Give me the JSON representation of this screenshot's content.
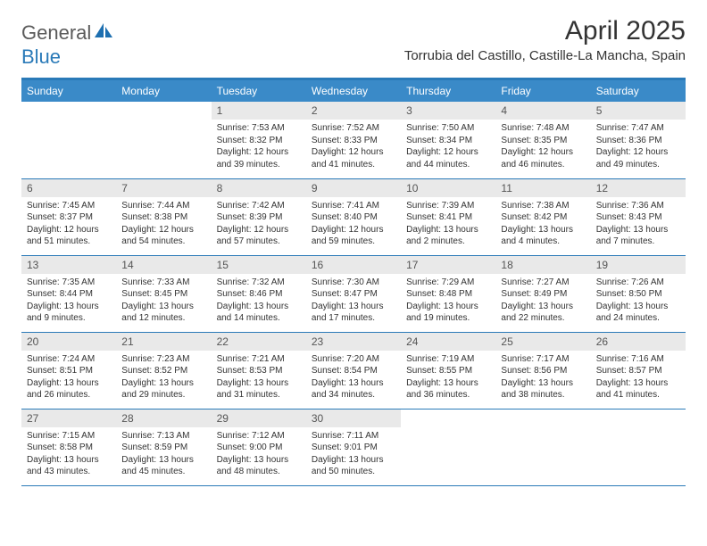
{
  "brand": {
    "part1": "General",
    "part2": "Blue"
  },
  "title": "April 2025",
  "location": "Torrubia del Castillo, Castille-La Mancha, Spain",
  "colors": {
    "header_bg": "#3a8ac8",
    "header_border": "#2a7ab8",
    "daynum_bg": "#e9e9e9",
    "text": "#333333",
    "logo_gray": "#5a5a5a",
    "logo_blue": "#2a7ab8"
  },
  "weekdays": [
    "Sunday",
    "Monday",
    "Tuesday",
    "Wednesday",
    "Thursday",
    "Friday",
    "Saturday"
  ],
  "weeks": [
    [
      {
        "blank": true
      },
      {
        "blank": true
      },
      {
        "day": "1",
        "sunrise": "Sunrise: 7:53 AM",
        "sunset": "Sunset: 8:32 PM",
        "daylight1": "Daylight: 12 hours",
        "daylight2": "and 39 minutes."
      },
      {
        "day": "2",
        "sunrise": "Sunrise: 7:52 AM",
        "sunset": "Sunset: 8:33 PM",
        "daylight1": "Daylight: 12 hours",
        "daylight2": "and 41 minutes."
      },
      {
        "day": "3",
        "sunrise": "Sunrise: 7:50 AM",
        "sunset": "Sunset: 8:34 PM",
        "daylight1": "Daylight: 12 hours",
        "daylight2": "and 44 minutes."
      },
      {
        "day": "4",
        "sunrise": "Sunrise: 7:48 AM",
        "sunset": "Sunset: 8:35 PM",
        "daylight1": "Daylight: 12 hours",
        "daylight2": "and 46 minutes."
      },
      {
        "day": "5",
        "sunrise": "Sunrise: 7:47 AM",
        "sunset": "Sunset: 8:36 PM",
        "daylight1": "Daylight: 12 hours",
        "daylight2": "and 49 minutes."
      }
    ],
    [
      {
        "day": "6",
        "sunrise": "Sunrise: 7:45 AM",
        "sunset": "Sunset: 8:37 PM",
        "daylight1": "Daylight: 12 hours",
        "daylight2": "and 51 minutes."
      },
      {
        "day": "7",
        "sunrise": "Sunrise: 7:44 AM",
        "sunset": "Sunset: 8:38 PM",
        "daylight1": "Daylight: 12 hours",
        "daylight2": "and 54 minutes."
      },
      {
        "day": "8",
        "sunrise": "Sunrise: 7:42 AM",
        "sunset": "Sunset: 8:39 PM",
        "daylight1": "Daylight: 12 hours",
        "daylight2": "and 57 minutes."
      },
      {
        "day": "9",
        "sunrise": "Sunrise: 7:41 AM",
        "sunset": "Sunset: 8:40 PM",
        "daylight1": "Daylight: 12 hours",
        "daylight2": "and 59 minutes."
      },
      {
        "day": "10",
        "sunrise": "Sunrise: 7:39 AM",
        "sunset": "Sunset: 8:41 PM",
        "daylight1": "Daylight: 13 hours",
        "daylight2": "and 2 minutes."
      },
      {
        "day": "11",
        "sunrise": "Sunrise: 7:38 AM",
        "sunset": "Sunset: 8:42 PM",
        "daylight1": "Daylight: 13 hours",
        "daylight2": "and 4 minutes."
      },
      {
        "day": "12",
        "sunrise": "Sunrise: 7:36 AM",
        "sunset": "Sunset: 8:43 PM",
        "daylight1": "Daylight: 13 hours",
        "daylight2": "and 7 minutes."
      }
    ],
    [
      {
        "day": "13",
        "sunrise": "Sunrise: 7:35 AM",
        "sunset": "Sunset: 8:44 PM",
        "daylight1": "Daylight: 13 hours",
        "daylight2": "and 9 minutes."
      },
      {
        "day": "14",
        "sunrise": "Sunrise: 7:33 AM",
        "sunset": "Sunset: 8:45 PM",
        "daylight1": "Daylight: 13 hours",
        "daylight2": "and 12 minutes."
      },
      {
        "day": "15",
        "sunrise": "Sunrise: 7:32 AM",
        "sunset": "Sunset: 8:46 PM",
        "daylight1": "Daylight: 13 hours",
        "daylight2": "and 14 minutes."
      },
      {
        "day": "16",
        "sunrise": "Sunrise: 7:30 AM",
        "sunset": "Sunset: 8:47 PM",
        "daylight1": "Daylight: 13 hours",
        "daylight2": "and 17 minutes."
      },
      {
        "day": "17",
        "sunrise": "Sunrise: 7:29 AM",
        "sunset": "Sunset: 8:48 PM",
        "daylight1": "Daylight: 13 hours",
        "daylight2": "and 19 minutes."
      },
      {
        "day": "18",
        "sunrise": "Sunrise: 7:27 AM",
        "sunset": "Sunset: 8:49 PM",
        "daylight1": "Daylight: 13 hours",
        "daylight2": "and 22 minutes."
      },
      {
        "day": "19",
        "sunrise": "Sunrise: 7:26 AM",
        "sunset": "Sunset: 8:50 PM",
        "daylight1": "Daylight: 13 hours",
        "daylight2": "and 24 minutes."
      }
    ],
    [
      {
        "day": "20",
        "sunrise": "Sunrise: 7:24 AM",
        "sunset": "Sunset: 8:51 PM",
        "daylight1": "Daylight: 13 hours",
        "daylight2": "and 26 minutes."
      },
      {
        "day": "21",
        "sunrise": "Sunrise: 7:23 AM",
        "sunset": "Sunset: 8:52 PM",
        "daylight1": "Daylight: 13 hours",
        "daylight2": "and 29 minutes."
      },
      {
        "day": "22",
        "sunrise": "Sunrise: 7:21 AM",
        "sunset": "Sunset: 8:53 PM",
        "daylight1": "Daylight: 13 hours",
        "daylight2": "and 31 minutes."
      },
      {
        "day": "23",
        "sunrise": "Sunrise: 7:20 AM",
        "sunset": "Sunset: 8:54 PM",
        "daylight1": "Daylight: 13 hours",
        "daylight2": "and 34 minutes."
      },
      {
        "day": "24",
        "sunrise": "Sunrise: 7:19 AM",
        "sunset": "Sunset: 8:55 PM",
        "daylight1": "Daylight: 13 hours",
        "daylight2": "and 36 minutes."
      },
      {
        "day": "25",
        "sunrise": "Sunrise: 7:17 AM",
        "sunset": "Sunset: 8:56 PM",
        "daylight1": "Daylight: 13 hours",
        "daylight2": "and 38 minutes."
      },
      {
        "day": "26",
        "sunrise": "Sunrise: 7:16 AM",
        "sunset": "Sunset: 8:57 PM",
        "daylight1": "Daylight: 13 hours",
        "daylight2": "and 41 minutes."
      }
    ],
    [
      {
        "day": "27",
        "sunrise": "Sunrise: 7:15 AM",
        "sunset": "Sunset: 8:58 PM",
        "daylight1": "Daylight: 13 hours",
        "daylight2": "and 43 minutes."
      },
      {
        "day": "28",
        "sunrise": "Sunrise: 7:13 AM",
        "sunset": "Sunset: 8:59 PM",
        "daylight1": "Daylight: 13 hours",
        "daylight2": "and 45 minutes."
      },
      {
        "day": "29",
        "sunrise": "Sunrise: 7:12 AM",
        "sunset": "Sunset: 9:00 PM",
        "daylight1": "Daylight: 13 hours",
        "daylight2": "and 48 minutes."
      },
      {
        "day": "30",
        "sunrise": "Sunrise: 7:11 AM",
        "sunset": "Sunset: 9:01 PM",
        "daylight1": "Daylight: 13 hours",
        "daylight2": "and 50 minutes."
      },
      {
        "blank": true
      },
      {
        "blank": true
      },
      {
        "blank": true
      }
    ]
  ]
}
